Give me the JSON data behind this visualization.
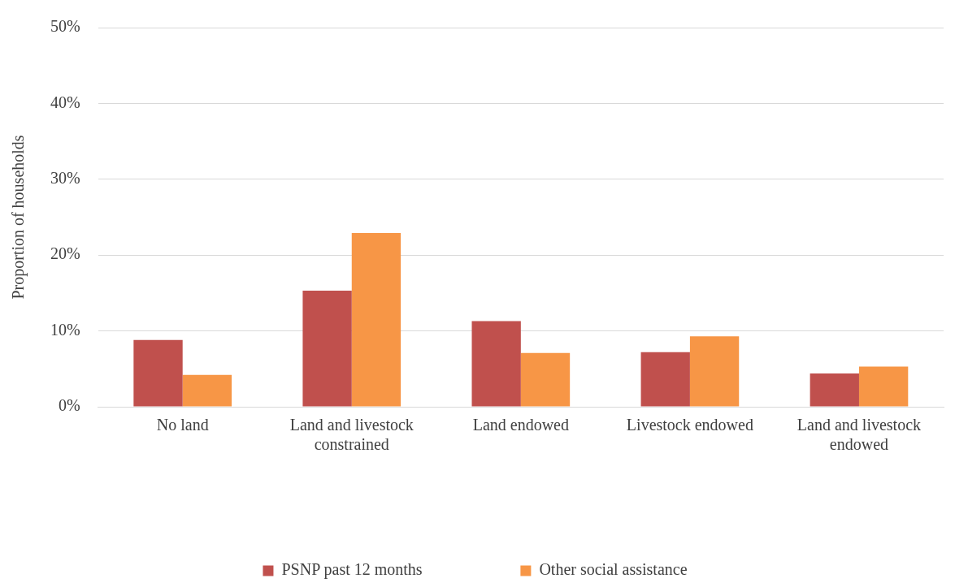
{
  "chart_data": {
    "type": "bar",
    "ylabel": "Proportion of households",
    "categories": [
      "No land",
      "Land and livestock constrained",
      "Land endowed",
      "Livestock endowed",
      "Land and livestock endowed"
    ],
    "series": [
      {
        "name": "PSNP past 12 months",
        "color": "#c0504d",
        "values": [
          8.8,
          15.3,
          11.3,
          7.2,
          4.4
        ]
      },
      {
        "name": "Other social assistance",
        "color": "#f79646",
        "values": [
          4.2,
          22.9,
          7.1,
          9.3,
          5.3
        ]
      }
    ],
    "ylim": [
      0,
      50
    ],
    "yticks": [
      {
        "value": 0,
        "label": "0%"
      },
      {
        "value": 10,
        "label": "10%"
      },
      {
        "value": 20,
        "label": "20%"
      },
      {
        "value": 30,
        "label": "30%"
      },
      {
        "value": 40,
        "label": "40%"
      },
      {
        "value": 50,
        "label": "50%"
      }
    ],
    "grid": "y",
    "legend": "bottom"
  }
}
